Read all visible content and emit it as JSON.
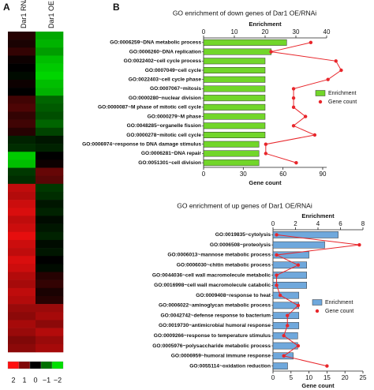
{
  "chart_data": [
    {
      "type": "heatmap",
      "panel_label": "A",
      "columns": [
        "Dar1 RNAi",
        "Dar1 OE"
      ],
      "values": [
        [
          0.3,
          -1.5
        ],
        [
          0.2,
          -1.6
        ],
        [
          0.4,
          -1.4
        ],
        [
          0.1,
          -1.7
        ],
        [
          0,
          -1.8
        ],
        [
          -0.1,
          -1.9
        ],
        [
          0.1,
          -1.7
        ],
        [
          0,
          -1.6
        ],
        [
          0.5,
          -0.9
        ],
        [
          0.6,
          -0.8
        ],
        [
          0.4,
          -0.7
        ],
        [
          0.5,
          -0.9
        ],
        [
          0.3,
          -0.6
        ],
        [
          -0.3,
          -0.2
        ],
        [
          -0.4,
          -0.3
        ],
        [
          -1.8,
          0
        ],
        [
          -1.7,
          0.1
        ],
        [
          -0.5,
          0.8
        ],
        [
          -0.4,
          0.7
        ],
        [
          1.5,
          -0.5
        ],
        [
          1.4,
          -0.4
        ],
        [
          1.6,
          -0.2
        ],
        [
          1.7,
          -0.3
        ],
        [
          1.5,
          -0.1
        ],
        [
          1.6,
          -0.2
        ],
        [
          1.8,
          -0.3
        ],
        [
          1.6,
          -0.1
        ],
        [
          1.5,
          -0.2
        ],
        [
          1.7,
          0
        ],
        [
          1.6,
          -0.1
        ],
        [
          1.4,
          0.3
        ],
        [
          1.3,
          0.4
        ],
        [
          1.5,
          0.2
        ],
        [
          1.4,
          0.3
        ],
        [
          1.2,
          1.2
        ],
        [
          1.1,
          1.3
        ],
        [
          1.3,
          1.1
        ],
        [
          1.2,
          1.4
        ],
        [
          1.0,
          1.2
        ],
        [
          1.1,
          1.3
        ]
      ],
      "clim": [
        -2,
        2
      ],
      "colors": {
        "low": "#00e000",
        "mid": "#000000",
        "high": "#ff1010"
      },
      "colorbar_ticks": [
        2,
        1,
        0,
        {
          "value": -1,
          "label": "−1"
        },
        {
          "value": -2,
          "label": "−2"
        }
      ]
    },
    {
      "type": "bar",
      "orientation": "horizontal",
      "panel_label": "B",
      "title": "GO enrichment of down genes of Dar1 OE/RNAi",
      "categories": [
        "GO:0006259~DNA metabolic process",
        "GO:0006260~DNA replication",
        "GO:0022402~cell cycle process",
        "GO:0007049~cell cycle",
        "GO:0022403~cell cycle phase",
        "GO:0007067~mitosis",
        "GO:0000280~nuclear division",
        "GO:0000087~M phase of mitotic cell cycle",
        "GO:0000279~M phase",
        "GO:0048285~organelle fission",
        "GO:0000278~mitotic cell cycle",
        "GO:0006974~response to DNA damage stimulus",
        "GO:0006281~DNA repair",
        "GO:0051301~cell division"
      ],
      "xlabel": "Enrichment",
      "xlim": [
        0,
        40
      ],
      "xticks": [
        0,
        10,
        20,
        30,
        40
      ],
      "x2label": "Gene count",
      "x2lim": [
        0,
        93
      ],
      "x2ticks": [
        0,
        30,
        60,
        90
      ],
      "series": [
        {
          "name": "Enrichment",
          "type": "bar",
          "color": "#72d62a",
          "values": [
            27,
            22,
            20,
            20,
            20,
            20,
            20,
            20,
            20,
            20,
            20,
            18,
            18,
            18
          ]
        },
        {
          "name": "Gene count",
          "type": "line",
          "axis": "x2",
          "color": "#e8262b",
          "values": [
            81,
            51,
            100,
            104,
            94,
            68,
            68,
            68,
            77,
            68,
            84,
            47,
            47,
            70
          ]
        }
      ]
    },
    {
      "type": "bar",
      "orientation": "horizontal",
      "title": "GO enrichment of up genes of Dar1 OE/RNAi",
      "categories": [
        "GO:0019835~cytolysis",
        "GO:0006508~proteolysis",
        "GO:0006013~mannose metabolic process",
        "GO:0006030~chitin metabolic process",
        "GO:0044036~cell wall macromolecule metabolic",
        "GO:0016998~cell wall macromolecule catabolic",
        "GO:0009408~response to heat",
        "GO:0006022~aminoglycan metabolic process",
        "GO:0042742~defense response to bacterium",
        "GO:0019730~antimicrobial humoral response",
        "GO:0009266~response to temperature stimulus",
        "GO:0005976~polysaccharide metabolic process",
        "GO:0006959~humoral immune response",
        "GO:0055114~oxidation reduction"
      ],
      "xlabel": "Enrichment",
      "xlim": [
        0,
        8
      ],
      "xticks": [
        0,
        2,
        4,
        6,
        8
      ],
      "x2label": "Gene count",
      "x2lim": [
        0,
        25
      ],
      "x2ticks": [
        0,
        5,
        10,
        15,
        20,
        25
      ],
      "series": [
        {
          "name": "Enrichment",
          "type": "bar",
          "color": "#6fa8dc",
          "values": [
            5.8,
            4.6,
            3.2,
            3.0,
            3.0,
            3.0,
            2.3,
            2.3,
            2.3,
            2.3,
            2.2,
            2.2,
            1.8,
            1.3
          ]
        },
        {
          "name": "Gene count",
          "type": "line",
          "axis": "x2",
          "color": "#e8262b",
          "values": [
            1,
            24,
            1,
            7,
            1,
            1,
            2,
            7,
            4,
            4,
            3,
            7,
            3,
            15
          ]
        }
      ]
    }
  ]
}
